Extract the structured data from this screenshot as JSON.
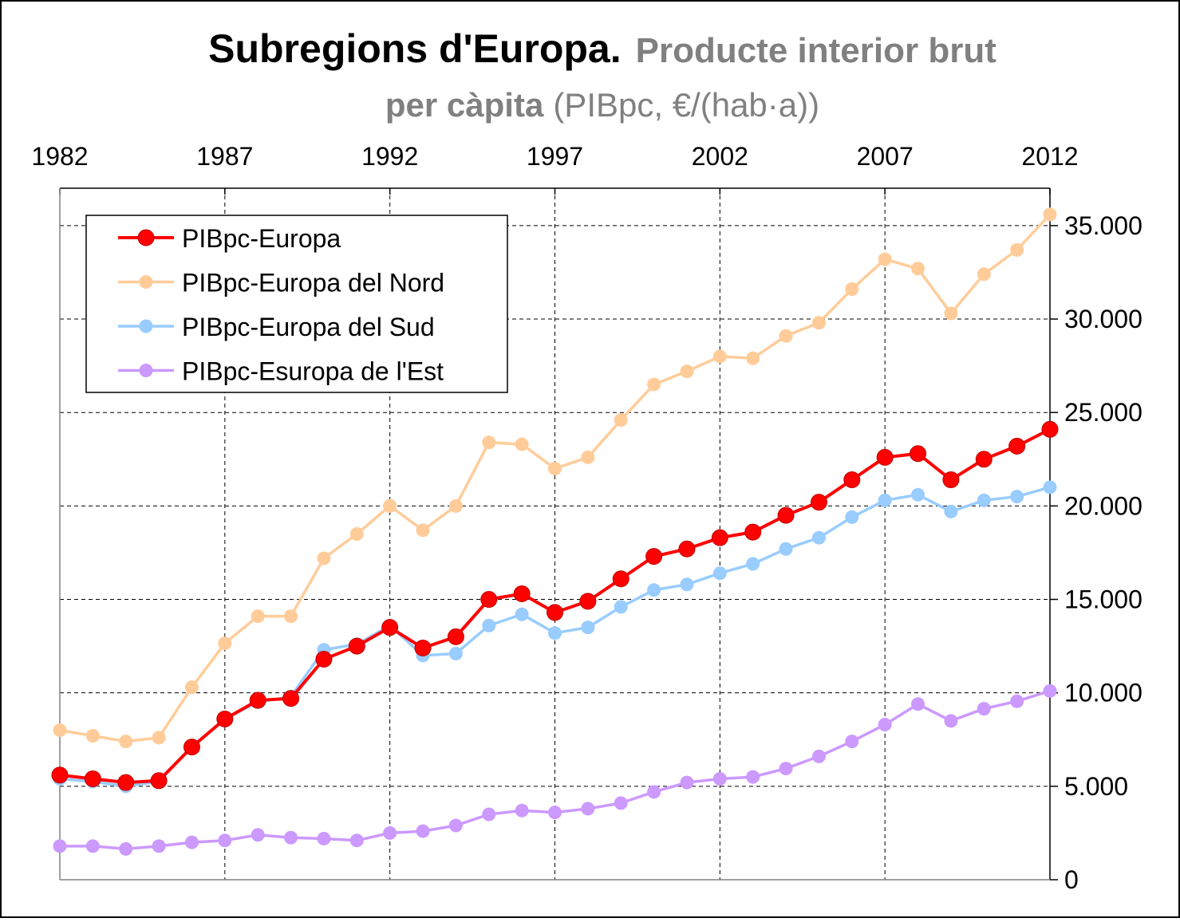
{
  "chart_data": {
    "type": "line",
    "title": "Subregions d'Europa.",
    "subtitle": {
      "line1": "Producte interior brut",
      "line2_bold": "per càpita",
      "line2": "(PIBpc, €/(hab·a))"
    },
    "x": [
      1982,
      1983,
      1984,
      1985,
      1986,
      1987,
      1988,
      1989,
      1990,
      1991,
      1992,
      1993,
      1994,
      1995,
      1996,
      1997,
      1998,
      1999,
      2000,
      2001,
      2002,
      2003,
      2004,
      2005,
      2006,
      2007,
      2008,
      2009,
      2010,
      2011,
      2012
    ],
    "xlim": [
      1982,
      2012
    ],
    "xticks": [
      1982,
      1987,
      1992,
      1997,
      2002,
      2007,
      2012
    ],
    "ylim": [
      0,
      37000
    ],
    "yticks": [
      0,
      {
        "value": 5000,
        "label": "5.000"
      },
      {
        "value": 10000,
        "label": "10.000"
      },
      {
        "value": 15000,
        "label": "15.000"
      },
      {
        "value": 20000,
        "label": "20.000"
      },
      {
        "value": 25000,
        "label": "25.000"
      },
      {
        "value": 30000,
        "label": "30.000"
      },
      {
        "value": 35000,
        "label": "35.000"
      }
    ],
    "grid": true,
    "legend": "upper left",
    "series": [
      {
        "name": "PIBpc-Europa",
        "color": "#ff0000",
        "values": [
          5600,
          5400,
          5200,
          5300,
          7100,
          8600,
          9600,
          9700,
          11800,
          12500,
          13500,
          12400,
          13000,
          15000,
          15300,
          14300,
          14900,
          16100,
          17300,
          17700,
          18300,
          18600,
          19500,
          20200,
          21400,
          22600,
          22800,
          21400,
          22500,
          23200,
          24100
        ]
      },
      {
        "name": "PIBpc-Europa del Nord",
        "color": "#ffcc99",
        "values": [
          8000,
          7700,
          7400,
          7600,
          10300,
          12650,
          14100,
          14100,
          17200,
          18500,
          20000,
          18700,
          20000,
          23400,
          23300,
          22000,
          22600,
          24600,
          26500,
          27200,
          28000,
          27900,
          29100,
          29800,
          31600,
          33200,
          32700,
          30300,
          32400,
          33700,
          35600
        ]
      },
      {
        "name": "PIBpc-Europa del Sud",
        "color": "#99ccff",
        "values": [
          5400,
          5250,
          5000,
          5250,
          7100,
          8600,
          9500,
          9800,
          12300,
          12600,
          13600,
          12000,
          12100,
          13600,
          14200,
          13200,
          13500,
          14600,
          15500,
          15800,
          16400,
          16900,
          17700,
          18300,
          19400,
          20300,
          20600,
          19700,
          20300,
          20500,
          21000
        ]
      },
      {
        "name": "PIBpc-Esuropa de l'Est",
        "color": "#cc99ff",
        "values": [
          1800,
          1800,
          1650,
          1800,
          2000,
          2100,
          2400,
          2250,
          2200,
          2100,
          2500,
          2600,
          2900,
          3500,
          3700,
          3600,
          3800,
          4100,
          4700,
          5200,
          5400,
          5500,
          5950,
          6600,
          7400,
          8300,
          9400,
          8500,
          9150,
          9550,
          10100
        ]
      }
    ]
  }
}
